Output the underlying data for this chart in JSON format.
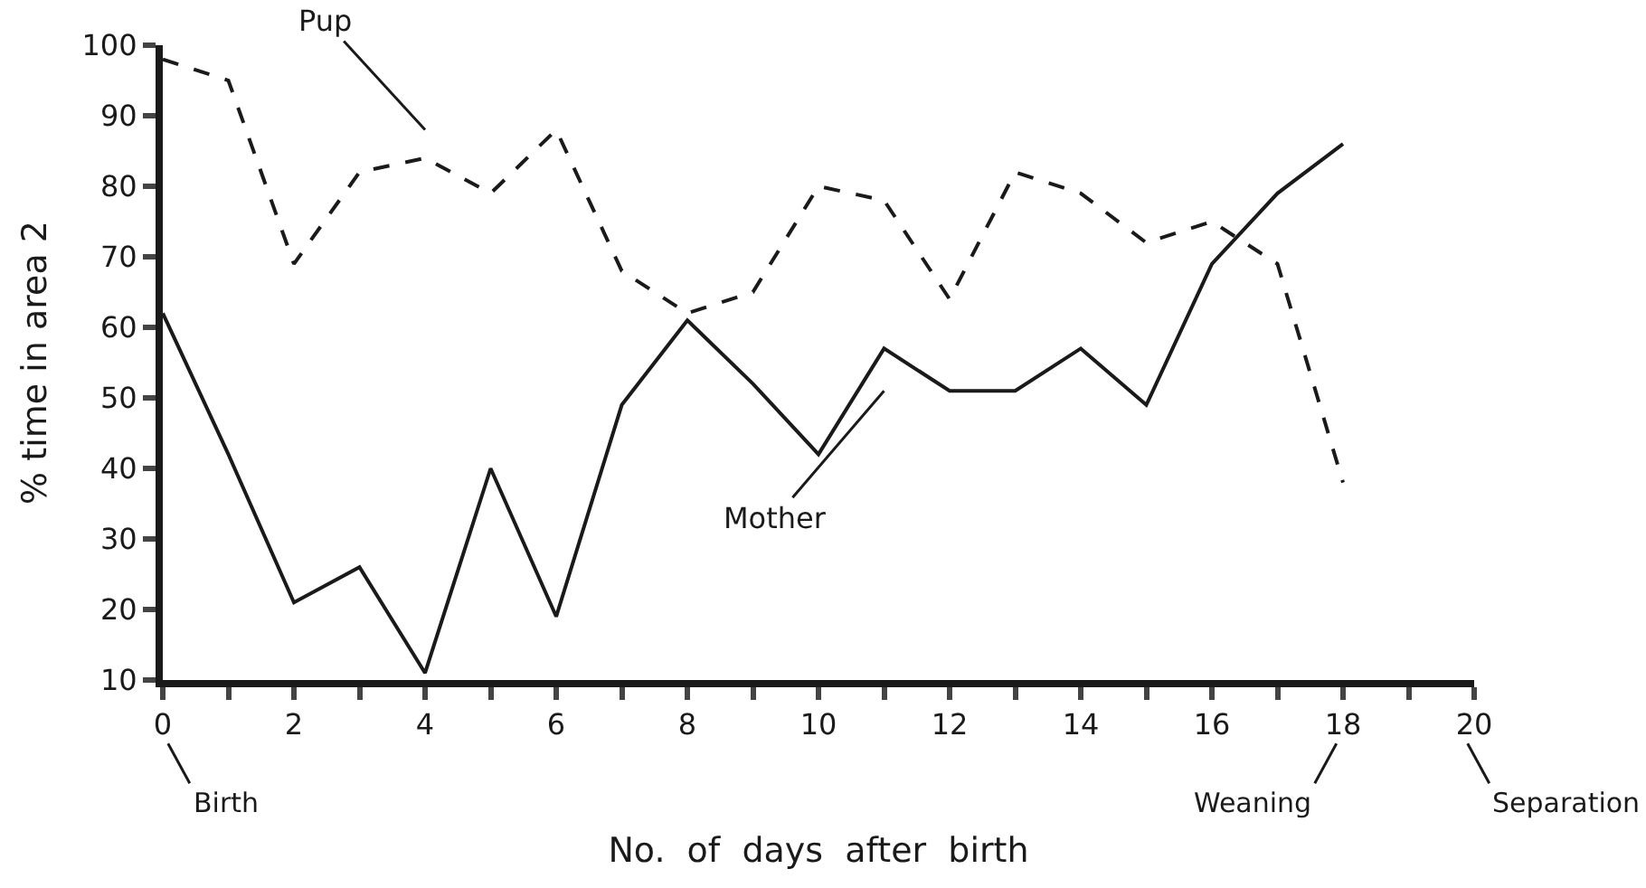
{
  "chart_data": {
    "type": "line",
    "xlabel": "No.  of  days  after  birth",
    "ylabel": "% time in area 2",
    "x": [
      0,
      1,
      2,
      3,
      4,
      5,
      6,
      7,
      8,
      9,
      10,
      11,
      12,
      13,
      14,
      15,
      16,
      17,
      18
    ],
    "series": [
      {
        "name": "Pup",
        "color": "#1a1a1a",
        "line_style": "dashed",
        "values": [
          98,
          95,
          69,
          82,
          84,
          79,
          88,
          68,
          62,
          65,
          80,
          78,
          64,
          82,
          79,
          72,
          75,
          69,
          38
        ]
      },
      {
        "name": "Mother",
        "color": "#1a1a1a",
        "line_style": "solid",
        "values": [
          62,
          42,
          21,
          26,
          11,
          40,
          19,
          49,
          61,
          52,
          42,
          57,
          51,
          51,
          57,
          49,
          69,
          79,
          86
        ]
      }
    ],
    "xlim": [
      0,
      20
    ],
    "ylim": [
      10,
      100
    ],
    "xticks": [
      0,
      {
        "value": 1,
        "label": null
      },
      2,
      {
        "value": 3,
        "label": null
      },
      4,
      {
        "value": 5,
        "label": null
      },
      6,
      {
        "value": 7,
        "label": null
      },
      8,
      {
        "value": 9,
        "label": null
      },
      10,
      {
        "value": 11,
        "label": null
      },
      12,
      {
        "value": 13,
        "label": null
      },
      14,
      {
        "value": 15,
        "label": null
      },
      16,
      {
        "value": 17,
        "label": null
      },
      18,
      {
        "value": 19,
        "label": null
      },
      20
    ],
    "yticks": [
      10,
      20,
      30,
      40,
      50,
      60,
      70,
      80,
      90,
      100
    ],
    "annotations": [
      "Birth",
      "Weaning",
      "Separation"
    ],
    "legend": false,
    "marker": "none"
  }
}
